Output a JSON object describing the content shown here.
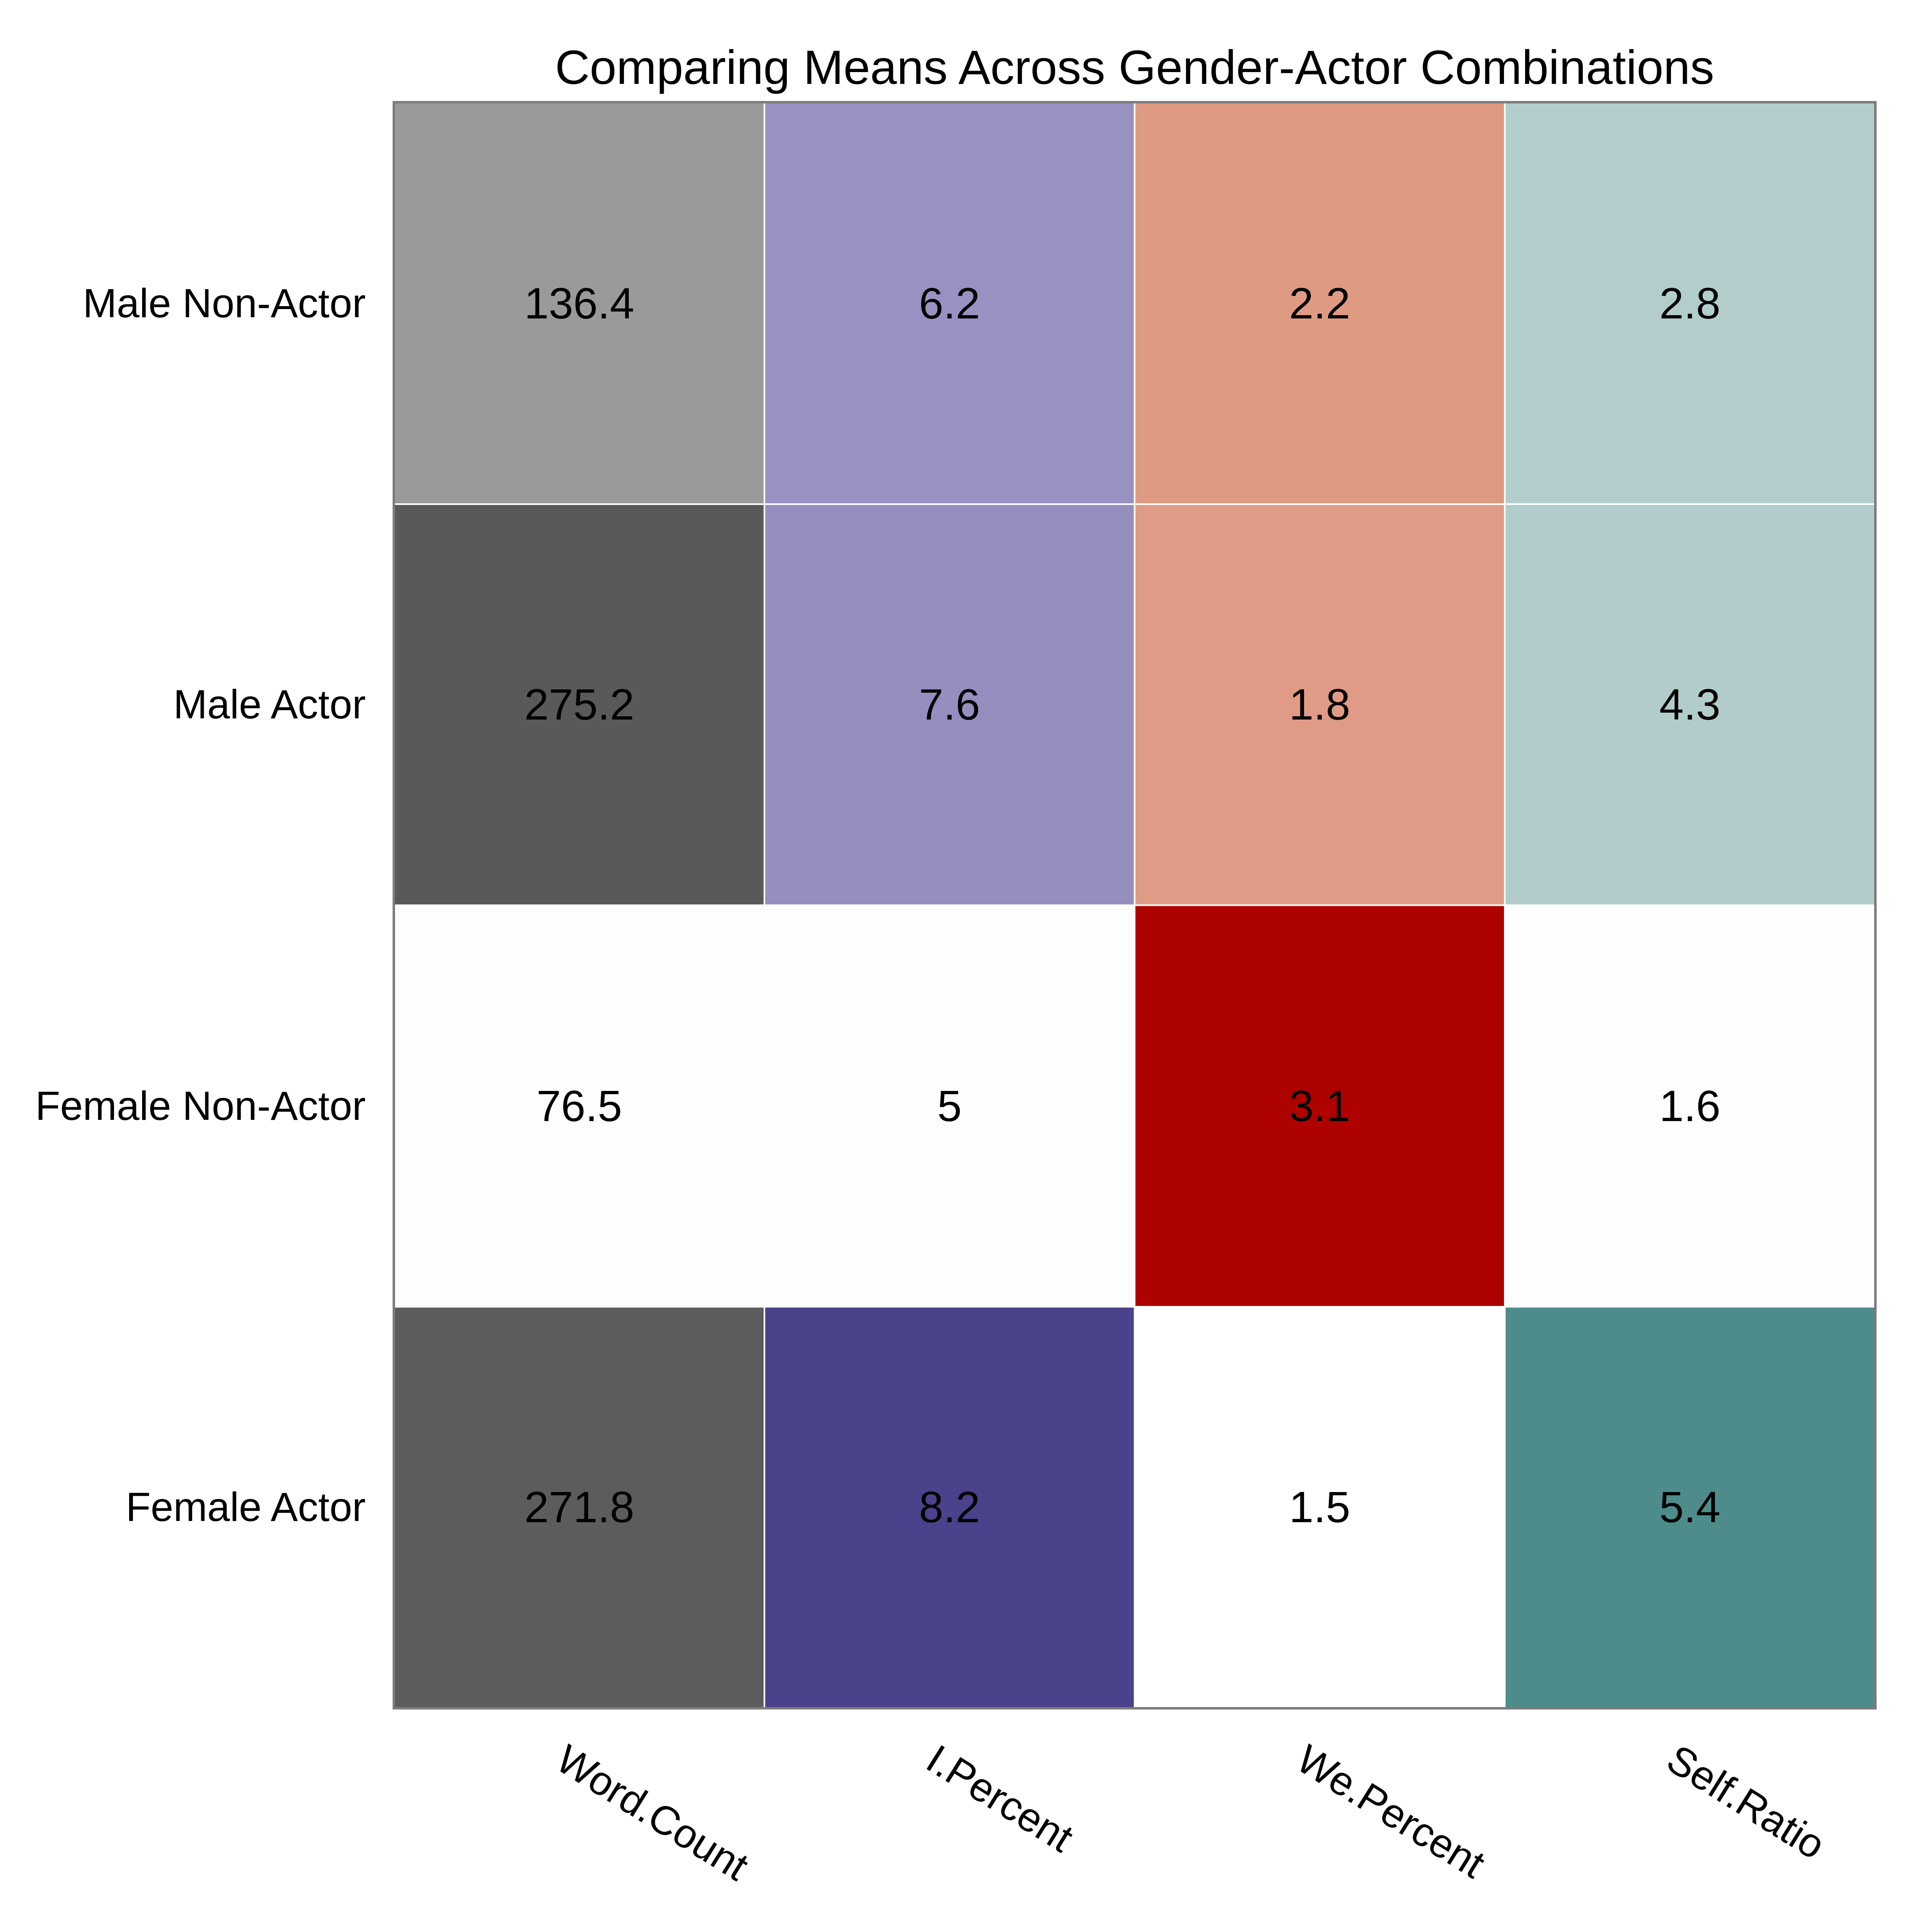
{
  "chart_data": {
    "type": "heatmap",
    "title": "Comparing Means Across Gender-Actor Combinations",
    "rows": [
      "Male Non-Actor",
      "Male Actor",
      "Female Non-Actor",
      "Female Actor"
    ],
    "columns": [
      "Word.Count",
      "I.Percent",
      "We.Percent",
      "Self.Ratio"
    ],
    "values": [
      [
        136.4,
        6.2,
        2.2,
        2.8
      ],
      [
        275.2,
        7.6,
        1.8,
        4.3
      ],
      [
        76.5,
        5,
        3.1,
        1.6
      ],
      [
        271.8,
        8.2,
        1.5,
        5.4
      ]
    ],
    "value_labels": [
      [
        "136.4",
        "6.2",
        "2.2",
        "2.8"
      ],
      [
        "275.2",
        "7.6",
        "1.8",
        "4.3"
      ],
      [
        "76.5",
        "5",
        "3.1",
        "1.6"
      ],
      [
        "271.8",
        "8.2",
        "1.5",
        "5.4"
      ]
    ],
    "cell_colors": [
      [
        "#9a9a9a",
        "#9892c2",
        "#df9a82",
        "#b3cdcd"
      ],
      [
        "#595959",
        "#958fc0",
        "#e09b86",
        "#b1cccb"
      ],
      [
        "#fdfdfd",
        "#fdfdfd",
        "#ae0200",
        "#fdfdfd"
      ],
      [
        "#5d5c5c",
        "#4a428b",
        "#ffffff",
        "#4d8c8a"
      ]
    ],
    "text_color": "#000000",
    "panel_border_color": "#7c7c7c",
    "separator_color": "#ffffff",
    "x_tick_angle_deg": -32,
    "legend": "none",
    "grid": "off"
  }
}
